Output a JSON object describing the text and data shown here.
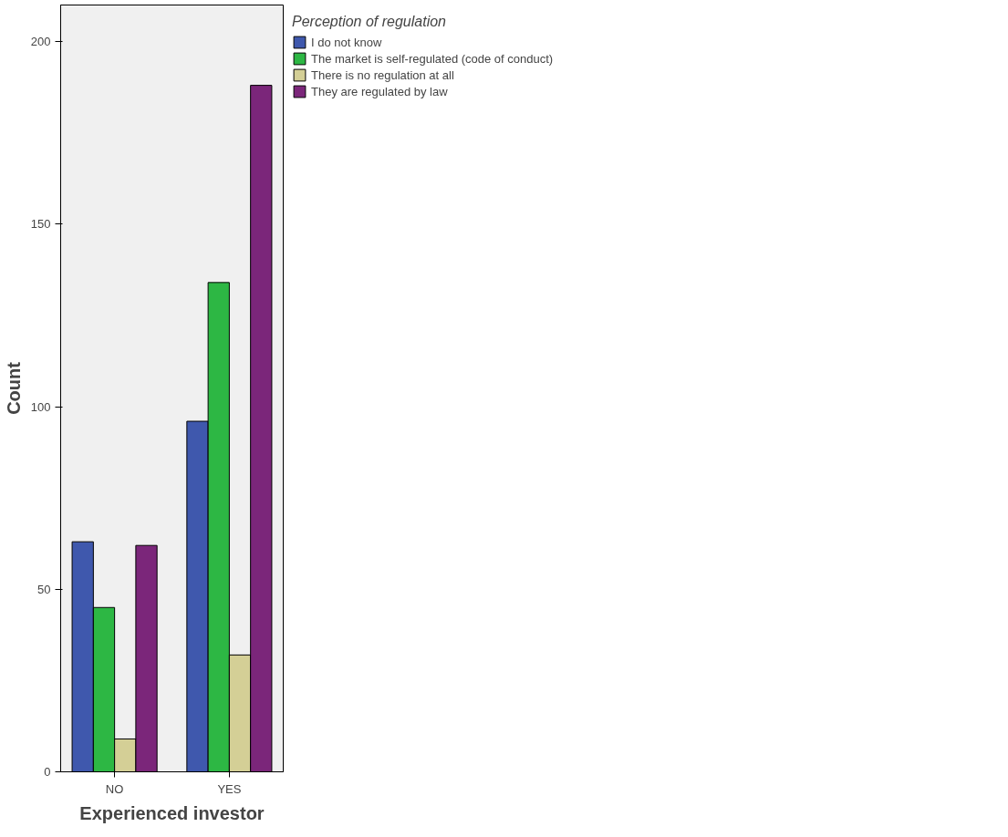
{
  "chart_data": {
    "type": "bar",
    "xlabel": "Experienced investor",
    "ylabel": "Count",
    "legend_title": "Perception of regulation",
    "categories": [
      "NO",
      "YES"
    ],
    "series": [
      {
        "name": "I do not know",
        "color": "#3f58ad",
        "values": [
          63,
          96
        ]
      },
      {
        "name": "The market is self-regulated (code of conduct)",
        "color": "#2db744",
        "values": [
          45,
          134
        ]
      },
      {
        "name": "There is no regulation at all",
        "color": "#d4cf96",
        "values": [
          9,
          32
        ]
      },
      {
        "name": "They are regulated by law",
        "color": "#7b267a",
        "values": [
          62,
          188
        ]
      }
    ],
    "ylim": [
      0,
      210
    ],
    "yticks": [
      0,
      50,
      100,
      150,
      200
    ],
    "grid": false,
    "legend": "right"
  }
}
